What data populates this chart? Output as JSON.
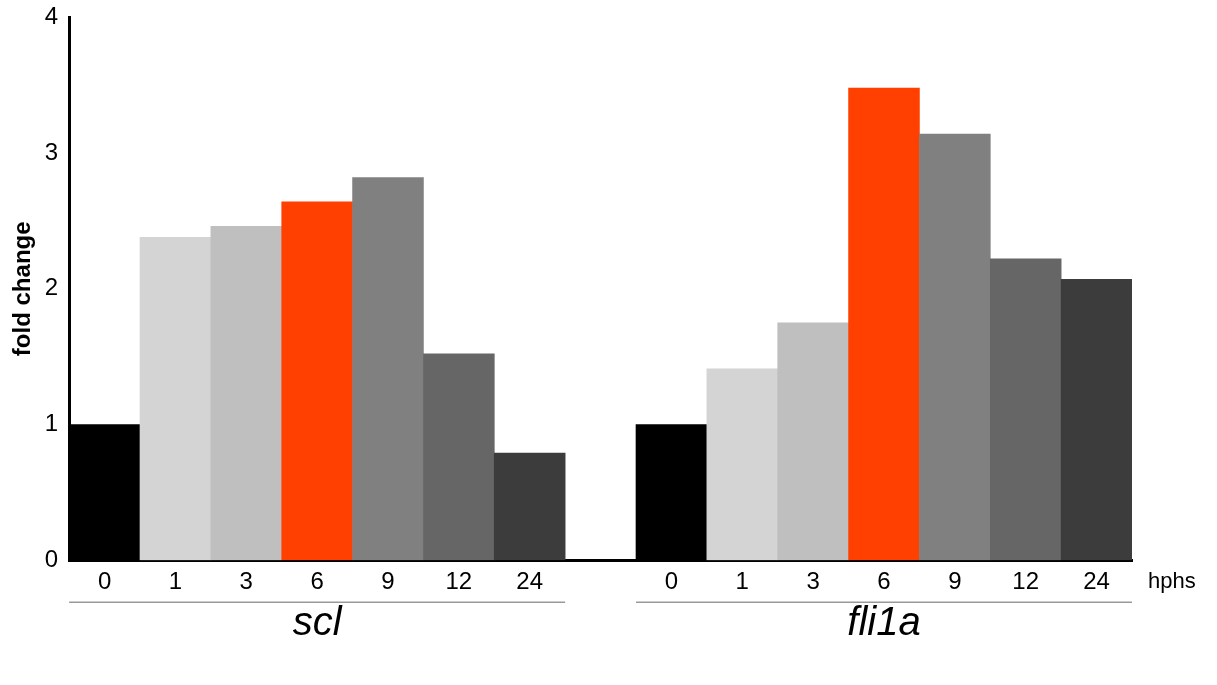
{
  "chart_data": {
    "type": "bar",
    "ylabel": "fold change",
    "xlabel": "hphs",
    "categories": [
      "0",
      "1",
      "3",
      "6",
      "9",
      "12",
      "24",
      null,
      "0",
      "1",
      "3",
      "6",
      "9",
      "12",
      "24"
    ],
    "values": [
      1.0,
      2.38,
      2.46,
      2.64,
      2.82,
      1.52,
      0.79,
      null,
      1.0,
      1.41,
      1.75,
      3.48,
      3.14,
      2.22,
      2.07
    ],
    "colors": [
      "#000000",
      "#d4d4d4",
      "#bfbfbf",
      "#ff4000",
      "#808080",
      "#666666",
      "#3c3c3c",
      "#ffffff",
      "#000000",
      "#d4d4d4",
      "#bfbfbf",
      "#ff4000",
      "#808080",
      "#666666",
      "#3c3c3c"
    ],
    "ylim": [
      0,
      4
    ],
    "yticks": [
      0,
      1,
      2,
      3,
      4
    ],
    "grid": false,
    "legend": false,
    "annotations": [
      "scl",
      "fli1a"
    ]
  }
}
